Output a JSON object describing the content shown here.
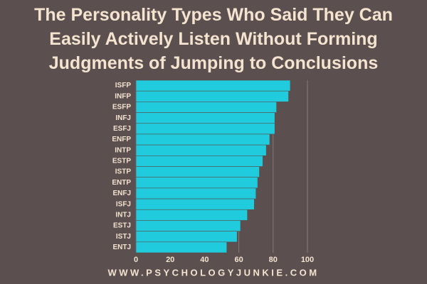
{
  "chart_data": {
    "type": "hbar",
    "title": "The Personality Types Who Said They Can Easily Actively Listen Without Forming Judgments of Jumping to Conclusions",
    "categories": [
      "ISFP",
      "INFP",
      "ESFP",
      "INFJ",
      "ESFJ",
      "ENFP",
      "INTP",
      "ESTP",
      "ISTP",
      "ENTP",
      "ENFJ",
      "ISFJ",
      "INTJ",
      "ESTJ",
      "ISTJ",
      "ENTJ"
    ],
    "values": [
      90,
      89,
      82,
      81,
      81,
      78,
      76,
      74,
      72,
      71,
      70,
      69,
      65,
      61,
      59,
      53
    ],
    "color": "#1fcbdc",
    "xlim": [
      0,
      100
    ],
    "xticks": [
      0,
      20,
      40,
      60,
      80,
      100
    ],
    "grid": true
  },
  "footer": "WWW.PSYCHOLOGYJUNKIE.COM"
}
